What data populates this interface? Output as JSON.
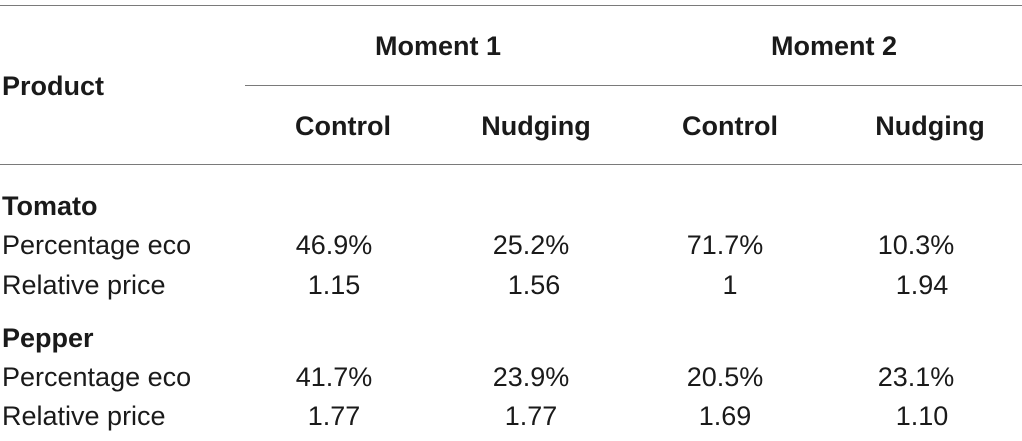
{
  "table": {
    "row_header": "Product",
    "groups": [
      "Moment 1",
      "Moment 2"
    ],
    "subheaders": [
      "Control",
      "Nudging",
      "Control",
      "Nudging"
    ],
    "sections": [
      {
        "name": "Tomato",
        "rows": [
          {
            "label": "Percentage eco",
            "values": [
              "46.9%",
              "25.2%",
              "71.7%",
              "10.3%"
            ]
          },
          {
            "label": "Relative price",
            "values": [
              "1.15",
              "1.56",
              "1",
              "1.94"
            ]
          }
        ]
      },
      {
        "name": "Pepper",
        "rows": [
          {
            "label": "Percentage eco",
            "values": [
              "41.7%",
              "23.9%",
              "20.5%",
              "23.1%"
            ]
          },
          {
            "label": "Relative price",
            "values": [
              "1.77",
              "1.77",
              "1.69",
              "1.10"
            ]
          }
        ]
      }
    ]
  }
}
